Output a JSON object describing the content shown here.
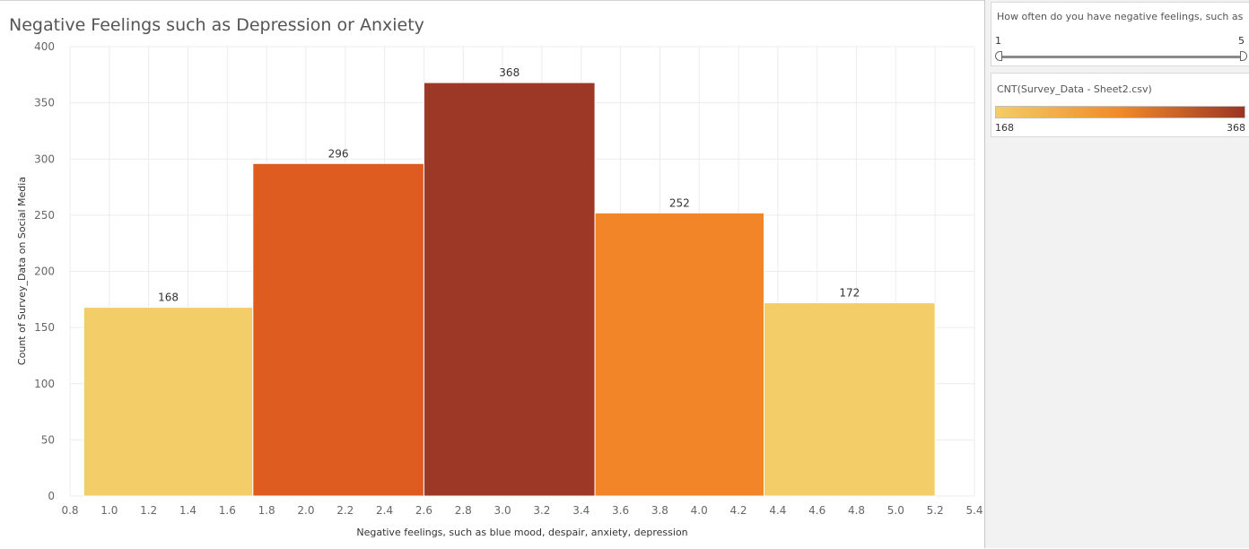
{
  "colors": {
    "scale_low": "#f3cd67",
    "scale_mid": "#f08a2a",
    "scale_high": "#9b3524",
    "bar_colors": [
      "#f3cd67",
      "#df5c20",
      "#9e3826",
      "#f18528",
      "#f3cd67"
    ]
  },
  "chart_data": {
    "type": "bar",
    "title": "Negative Feelings such as Depression or Anxiety",
    "xlabel": "Negative feelings, such as blue mood, despair, anxiety, depression",
    "ylabel": "Count of Survey_Data on Social Media",
    "bars": [
      {
        "x_start": 0.87,
        "x_end": 1.73,
        "value": 168
      },
      {
        "x_start": 1.73,
        "x_end": 2.6,
        "value": 296
      },
      {
        "x_start": 2.6,
        "x_end": 3.47,
        "value": 368
      },
      {
        "x_start": 3.47,
        "x_end": 4.33,
        "value": 252
      },
      {
        "x_start": 4.33,
        "x_end": 5.2,
        "value": 172
      }
    ],
    "data_labels": [
      "168",
      "296",
      "368",
      "252",
      "172"
    ],
    "x_ticks": [
      "0.8",
      "1.0",
      "1.2",
      "1.4",
      "1.6",
      "1.8",
      "2.0",
      "2.2",
      "2.4",
      "2.6",
      "2.8",
      "3.0",
      "3.2",
      "3.4",
      "3.6",
      "3.8",
      "4.0",
      "4.2",
      "4.4",
      "4.6",
      "4.8",
      "5.0",
      "5.2",
      "5.4"
    ],
    "y_ticks": [
      "0",
      "50",
      "100",
      "150",
      "200",
      "250",
      "300",
      "350",
      "400"
    ],
    "xlim": [
      0.8,
      5.4
    ],
    "ylim": [
      0,
      400
    ],
    "grid": true
  },
  "filter": {
    "title": "How often do you have negative feelings, such as ...",
    "min_label": "1",
    "max_label": "5"
  },
  "legend": {
    "title": "CNT(Survey_Data - Sheet2.csv)",
    "min_label": "168",
    "max_label": "368"
  }
}
